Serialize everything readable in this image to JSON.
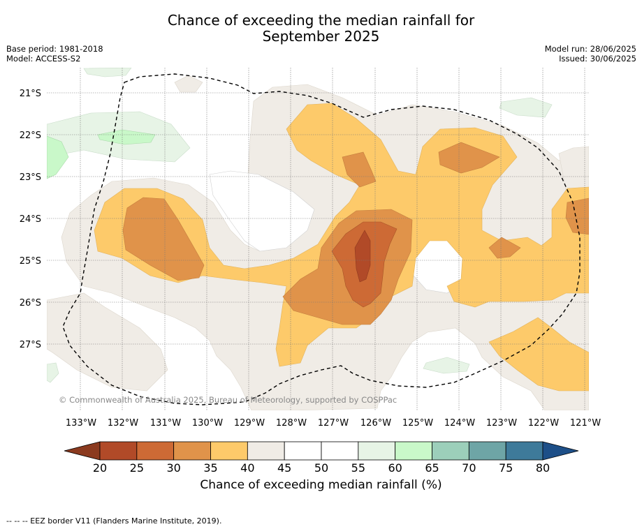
{
  "title_line1": "Chance of exceeding the median rainfall for",
  "title_line2": "September 2025",
  "meta_left": {
    "base_period": "Base period: 1981-2018",
    "model": "Model: ACCESS-S2"
  },
  "meta_right": {
    "model_run": "Model run: 28/06/2025",
    "issued": "Issued: 30/06/2025"
  },
  "copyright": "© Commonwealth of Australia 2025, Bureau of Meteorology, supported by COSPPac",
  "lat_labels": [
    "21°S",
    "22°S",
    "23°S",
    "24°S",
    "25°S",
    "26°S",
    "27°S"
  ],
  "lon_labels": [
    "133°W",
    "132°W",
    "131°W",
    "130°W",
    "129°W",
    "128°W",
    "127°W",
    "126°W",
    "125°W",
    "124°W",
    "123°W",
    "122°W",
    "121°W"
  ],
  "colorbar": {
    "ticks": [
      "20",
      "25",
      "30",
      "35",
      "40",
      "45",
      "50",
      "55",
      "60",
      "65",
      "70",
      "75",
      "80"
    ],
    "colors": [
      "#8b3a1f",
      "#b14a28",
      "#cd6a35",
      "#e0934a",
      "#fdca6a",
      "#f0ece6",
      "#ffffff",
      "#ffffff",
      "#e7f4e6",
      "#c9f8c9",
      "#9ccfba",
      "#6ea5a6",
      "#3e7a9a",
      "#1d4f88"
    ],
    "label": "Chance of exceeding median rainfall (%)"
  },
  "footer": "--  --  -- EEZ border V11 (Flanders Marine Institute, 2019)."
}
